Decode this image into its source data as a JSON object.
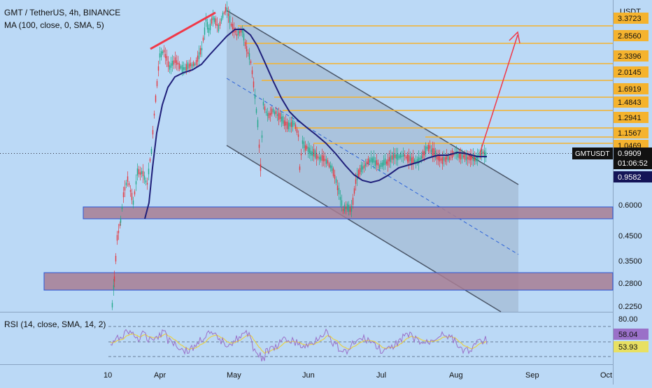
{
  "header": {
    "symbol_line": "GMT / TetherUS, 4h, BINANCE",
    "ma_line": "MA (100, close, 0, SMA, 5)",
    "rsi_line": "RSI (14, close, SMA, 14, 2)"
  },
  "price_scale": {
    "currency": "USDT",
    "ticks": [
      "0.6000",
      "0.4500",
      "0.3500",
      "0.2800",
      "0.2250"
    ]
  },
  "fib_levels": [
    "3.3723",
    "2.8560",
    "2.3396",
    "2.0145",
    "1.6919",
    "1.4843",
    "1.2941",
    "1.1567",
    "1.0469"
  ],
  "current": {
    "ticker": "GMTUSDT",
    "price": "0.9909",
    "countdown": "01:06:52",
    "ma_value": "0.9582"
  },
  "rsi_scale": {
    "top": "80.00",
    "rsi_value": "58.04",
    "rsi_ma_value": "53.93"
  },
  "time_axis": [
    "10",
    "Apr",
    "May",
    "Jun",
    "Jul",
    "Aug",
    "Sep",
    "Oct"
  ],
  "colors": {
    "background": "#bbd9f6",
    "channel": "#8fa6c4",
    "fib": "#f5b32e",
    "zone": "#a77c93",
    "ma": "#1f1f7a",
    "arrow": "#f03848",
    "rsi": "#9a70c8",
    "rsi_ma": "#e8d048",
    "candle_up": "#1fa88a",
    "candle_down": "#e5353d"
  },
  "chart_data": {
    "type": "candlestick",
    "symbol": "GMT / TetherUS",
    "interval": "4h",
    "exchange": "BINANCE",
    "y_scale": "log",
    "approx_close_path": [
      {
        "x": "Mar 10",
        "y": 0.225
      },
      {
        "x": "Mar 13",
        "y": 0.4
      },
      {
        "x": "Mar 16",
        "y": 0.55
      },
      {
        "x": "Mar 20",
        "y": 0.8
      },
      {
        "x": "Mar 25",
        "y": 0.95
      },
      {
        "x": "Mar 28",
        "y": 1.6
      },
      {
        "x": "Apr 1",
        "y": 2.7
      },
      {
        "x": "Apr 4",
        "y": 2.4
      },
      {
        "x": "Apr 10",
        "y": 2.3
      },
      {
        "x": "Apr 15",
        "y": 2.5
      },
      {
        "x": "Apr 20",
        "y": 3.6
      },
      {
        "x": "Apr 28",
        "y": 3.8
      },
      {
        "x": "May 1",
        "y": 3.4
      },
      {
        "x": "May 5",
        "y": 2.8
      },
      {
        "x": "May 9",
        "y": 1.5
      },
      {
        "x": "May 12",
        "y": 0.95
      },
      {
        "x": "May 15",
        "y": 1.3
      },
      {
        "x": "May 22",
        "y": 1.2
      },
      {
        "x": "May 28",
        "y": 1.05
      },
      {
        "x": "Jun 5",
        "y": 0.98
      },
      {
        "x": "Jun 12",
        "y": 0.7
      },
      {
        "x": "Jun 16",
        "y": 0.56
      },
      {
        "x": "Jun 20",
        "y": 0.85
      },
      {
        "x": "Jun 28",
        "y": 0.95
      },
      {
        "x": "Jul 8",
        "y": 0.95
      },
      {
        "x": "Jul 18",
        "y": 1.0
      },
      {
        "x": "Jul 28",
        "y": 1.05
      },
      {
        "x": "Aug 5",
        "y": 0.97
      },
      {
        "x": "Aug 10",
        "y": 0.99
      }
    ],
    "ma100_path": [
      {
        "x": "Mar 25",
        "y": 0.56
      },
      {
        "x": "Apr 1",
        "y": 1.2
      },
      {
        "x": "Apr 10",
        "y": 2.2
      },
      {
        "x": "Apr 25",
        "y": 2.9
      },
      {
        "x": "May 3",
        "y": 3.2
      },
      {
        "x": "May 15",
        "y": 2.3
      },
      {
        "x": "May 28",
        "y": 1.5
      },
      {
        "x": "Jun 10",
        "y": 1.1
      },
      {
        "x": "Jun 22",
        "y": 0.85
      },
      {
        "x": "Jul 5",
        "y": 0.88
      },
      {
        "x": "Jul 20",
        "y": 0.95
      },
      {
        "x": "Aug 5",
        "y": 1.0
      },
      {
        "x": "Aug 10",
        "y": 0.9582
      }
    ],
    "support_zones": [
      {
        "low": 0.56,
        "high": 0.62
      },
      {
        "low": 0.255,
        "high": 0.29
      }
    ],
    "rsi": {
      "period": 14,
      "ma_period": 14,
      "last": 58.04,
      "ma_last": 53.93,
      "upper": 80,
      "lower": 20
    }
  }
}
